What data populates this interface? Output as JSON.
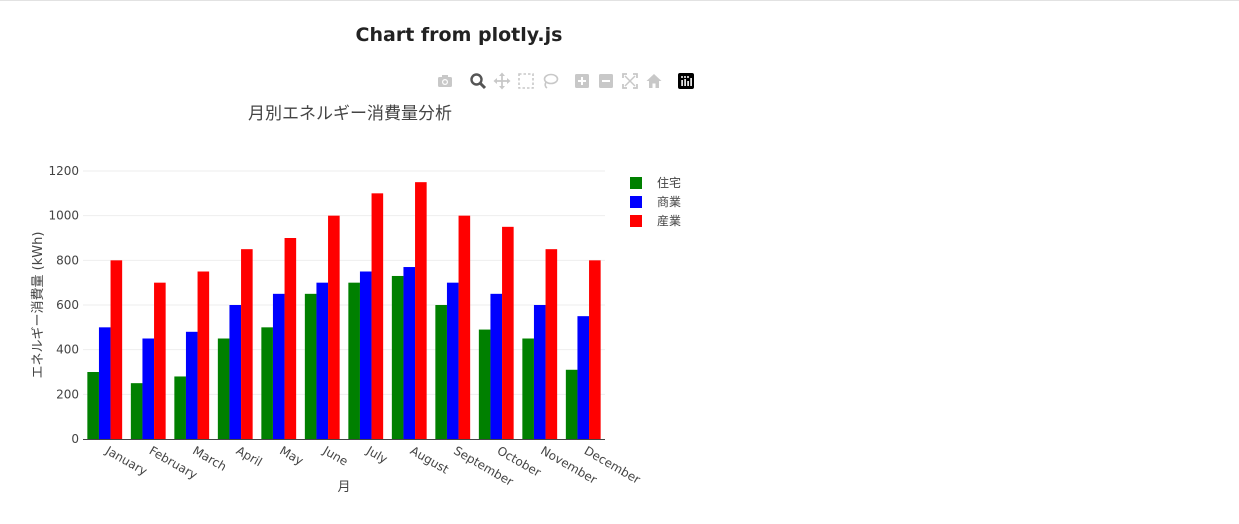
{
  "page": {
    "heading": "Chart from plotly.js"
  },
  "modebar": {
    "buttons": [
      {
        "name": "download-plot-button",
        "icon": "camera-icon"
      },
      {
        "name": "zoom-button",
        "icon": "magnifier-icon"
      },
      {
        "name": "pan-button",
        "icon": "pan-arrows-icon"
      },
      {
        "name": "box-select-button",
        "icon": "box-select-icon"
      },
      {
        "name": "lasso-select-button",
        "icon": "lasso-icon"
      },
      {
        "name": "zoom-in-button",
        "icon": "plus-square-icon"
      },
      {
        "name": "zoom-out-button",
        "icon": "minus-square-icon"
      },
      {
        "name": "autoscale-button",
        "icon": "autoscale-icon"
      },
      {
        "name": "reset-axes-button",
        "icon": "home-icon"
      },
      {
        "name": "plotly-logo-button",
        "icon": "plotly-logo-icon"
      }
    ],
    "colors": {
      "icon": "#c8c8c8",
      "active": "#555555",
      "logo_bg": "#000000"
    }
  },
  "chart_data": {
    "type": "bar",
    "title": "月別エネルギー消費量分析",
    "xlabel": "月",
    "ylabel": "エネルギー消費量 (kWh)",
    "categories": [
      "January",
      "February",
      "March",
      "April",
      "May",
      "June",
      "July",
      "August",
      "September",
      "October",
      "November",
      "December"
    ],
    "series": [
      {
        "name": "住宅",
        "color": "#008000",
        "values": [
          300,
          250,
          280,
          450,
          500,
          650,
          700,
          730,
          600,
          490,
          450,
          310
        ]
      },
      {
        "name": "商業",
        "color": "#0000ff",
        "values": [
          500,
          450,
          480,
          600,
          650,
          700,
          750,
          770,
          700,
          650,
          600,
          550
        ]
      },
      {
        "name": "産業",
        "color": "#ff0000",
        "values": [
          800,
          700,
          750,
          850,
          900,
          1000,
          1100,
          1150,
          1000,
          950,
          850,
          800
        ]
      }
    ],
    "ylim": [
      0,
      1200
    ],
    "yticks": [
      0,
      200,
      400,
      600,
      800,
      1000,
      1200
    ],
    "grid": true,
    "legend": "right",
    "barmode": "group"
  }
}
